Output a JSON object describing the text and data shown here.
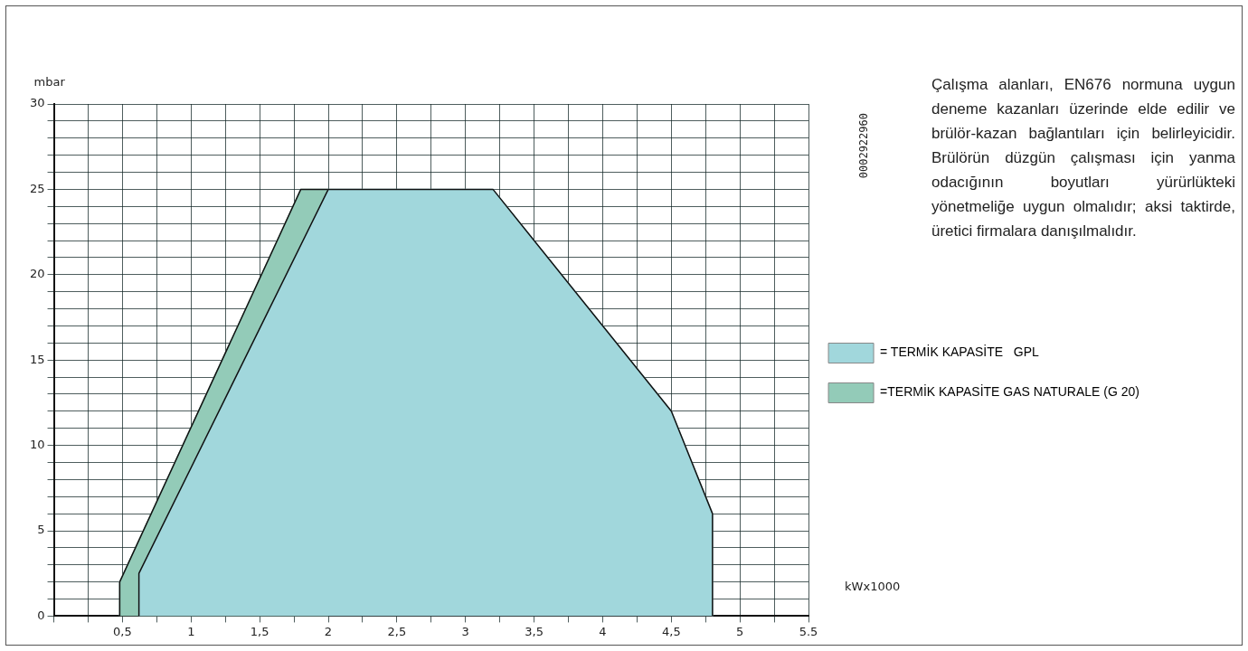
{
  "chart_data": {
    "type": "area",
    "xlabel": "kWx1000",
    "ylabel": "mbar",
    "xlim": [
      0,
      5.5
    ],
    "ylim": [
      0,
      30
    ],
    "xticks": [
      {
        "value": 0,
        "label": null
      },
      {
        "value": 0.25,
        "label": null
      },
      {
        "value": 0.5,
        "label": "0,5"
      },
      {
        "value": 0.75,
        "label": null
      },
      1,
      {
        "value": 1.25,
        "label": null
      },
      {
        "value": 1.5,
        "label": "1,5"
      },
      {
        "value": 1.75,
        "label": null
      },
      2,
      {
        "value": 2.25,
        "label": null
      },
      {
        "value": 2.5,
        "label": "2,5"
      },
      {
        "value": 2.75,
        "label": null
      },
      3,
      {
        "value": 3.25,
        "label": null
      },
      {
        "value": 3.5,
        "label": "3,5"
      },
      {
        "value": 3.75,
        "label": null
      },
      4,
      {
        "value": 4.25,
        "label": null
      },
      {
        "value": 4.5,
        "label": "4,5"
      },
      {
        "value": 4.75,
        "label": null
      },
      5,
      {
        "value": 5.25,
        "label": null
      },
      {
        "value": 5.5,
        "label": "5.5"
      }
    ],
    "yticks": [
      0,
      {
        "value": 1,
        "label": null
      },
      {
        "value": 2,
        "label": null
      },
      {
        "value": 3,
        "label": null
      },
      {
        "value": 4,
        "label": null
      },
      5,
      {
        "value": 6,
        "label": null
      },
      {
        "value": 7,
        "label": null
      },
      {
        "value": 8,
        "label": null
      },
      {
        "value": 9,
        "label": null
      },
      10,
      {
        "value": 11,
        "label": null
      },
      {
        "value": 12,
        "label": null
      },
      {
        "value": 13,
        "label": null
      },
      {
        "value": 14,
        "label": null
      },
      15,
      {
        "value": 16,
        "label": null
      },
      {
        "value": 17,
        "label": null
      },
      {
        "value": 18,
        "label": null
      },
      {
        "value": 19,
        "label": null
      },
      20,
      {
        "value": 21,
        "label": null
      },
      {
        "value": 22,
        "label": null
      },
      {
        "value": 23,
        "label": null
      },
      {
        "value": 24,
        "label": null
      },
      25,
      {
        "value": 26,
        "label": null
      },
      {
        "value": 27,
        "label": null
      },
      {
        "value": 28,
        "label": null
      },
      {
        "value": 29,
        "label": null
      },
      30
    ],
    "grid": true,
    "legend": "right",
    "marker": "none",
    "series": [
      {
        "name": "= TERMİK KAPASİTE   GPL",
        "color": "#a1d7dc",
        "x": [
          0.62,
          0.62,
          2,
          3.2,
          4.5,
          4.8,
          4.8
        ],
        "values": [
          0,
          2.5,
          25,
          25,
          12,
          6,
          0
        ]
      },
      {
        "name": "=TERMİK KAPASİTE GAS NATURALE (G 20)",
        "color": "#93cbb8",
        "x": [
          0.48,
          0.48,
          1.8,
          2
        ],
        "values": [
          0,
          2,
          25,
          25
        ]
      }
    ],
    "annotations": [
      "Çalışma alanları, EN676 normuna uygun deneme kazanları üzerinde elde edilir ve brülör-kazan bağlantıları için belirleyicidir. Brülörün düzgün çalışması için yanma odacığının boyutları yürürlükteki yönetmeliğe uygun olmalıdır; aksi taktirde, üretici firmalara danışılmalıdır.",
      "0002922960"
    ]
  }
}
